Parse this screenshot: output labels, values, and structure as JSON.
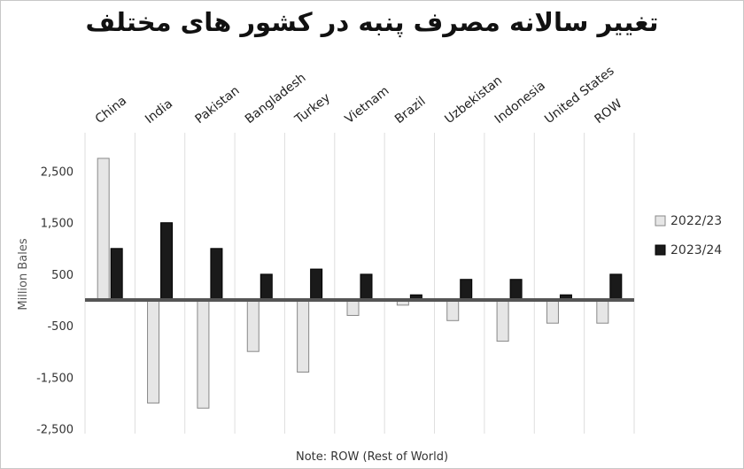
{
  "chart_data": {
    "type": "bar",
    "title": "تغییر سالانه مصرف پنبه در کشور های مختلف",
    "ylabel": "Million Bales",
    "note": "Note: ROW (Rest of World)",
    "categories": [
      "China",
      "India",
      "Pakistan",
      "Bangladesh",
      "Turkey",
      "Vietnam",
      "Brazil",
      "Uzbekistan",
      "Indonesia",
      "United States",
      "ROW"
    ],
    "yticks": [
      2500,
      1500,
      500,
      -500,
      -1500,
      -2500
    ],
    "ytick_labels": [
      "2,500",
      "1,500",
      "500",
      "-500",
      "-1,500",
      "-2,500"
    ],
    "ylim": [
      -2700,
      3200
    ],
    "legend_position": "right",
    "grid": "vertical",
    "series": [
      {
        "name": "2022/23",
        "color": "#e6e6e6",
        "values": [
          2750,
          -2000,
          -2100,
          -1000,
          -1400,
          -300,
          -100,
          -400,
          -800,
          -450,
          -450
        ]
      },
      {
        "name": "2023/24",
        "color": "#1a1a1a",
        "values": [
          1000,
          1500,
          1000,
          500,
          600,
          500,
          100,
          400,
          400,
          100,
          500
        ]
      }
    ]
  }
}
